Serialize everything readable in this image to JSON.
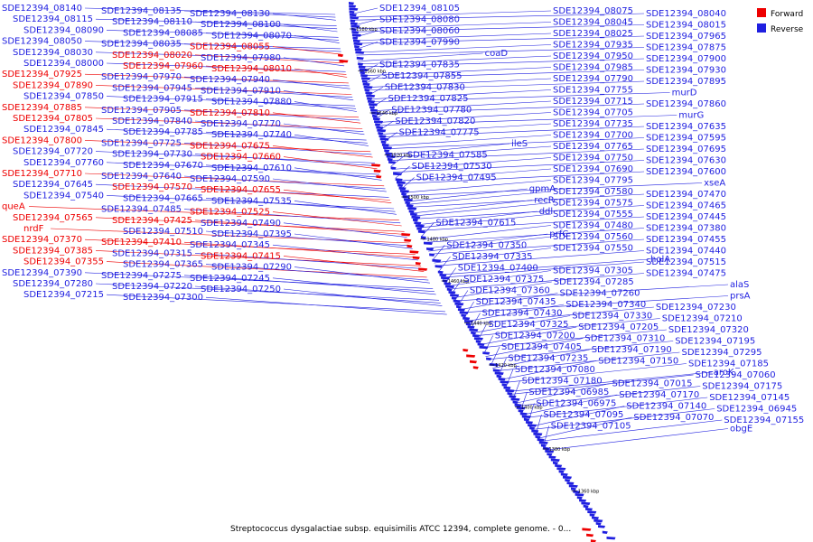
{
  "colors": {
    "forward": "#ee0000",
    "reverse": "#1f1fe0",
    "backbone": "#888888"
  },
  "legend": {
    "forward": "Forward",
    "reverse": "Reverse"
  },
  "caption": "Streptococcus dysgalactiae subsp. equisimilis ATCC 12394, complete genome. - 0...",
  "ticks": [
    "1580 kbp",
    "1560 kbp",
    "1540 kbp",
    "1520 kbp",
    "1500 kbp",
    "1480 kbp",
    "1460 kbp",
    "1440 kbp",
    "1420 kbp",
    "1400 kbp",
    "1380 kbp",
    "1360 kbp"
  ],
  "left_labels": [
    {
      "t": "SDE12394_08140",
      "s": "r"
    },
    {
      "t": "SDE12394_08135",
      "s": "r"
    },
    {
      "t": "SDE12394_08130",
      "s": "r"
    },
    {
      "t": "SDE12394_08115",
      "s": "r"
    },
    {
      "t": "SDE12394_08110",
      "s": "r"
    },
    {
      "t": "SDE12394_08100",
      "s": "r"
    },
    {
      "t": "SDE12394_08090",
      "s": "r"
    },
    {
      "t": "SDE12394_08085",
      "s": "r"
    },
    {
      "t": "SDE12394_08070",
      "s": "r"
    },
    {
      "t": "SDE12394_08050",
      "s": "r"
    },
    {
      "t": "SDE12394_08035",
      "s": "r"
    },
    {
      "t": "SDE12394_08055",
      "s": "f"
    },
    {
      "t": "SDE12394_08030",
      "s": "r"
    },
    {
      "t": "SDE12394_08020",
      "s": "f"
    },
    {
      "t": "SDE12394_07980",
      "s": "r"
    },
    {
      "t": "SDE12394_08000",
      "s": "r"
    },
    {
      "t": "SDE12394_07960",
      "s": "f"
    },
    {
      "t": "SDE12394_08010",
      "s": "f"
    },
    {
      "t": "SDE12394_07925",
      "s": "f"
    },
    {
      "t": "SDE12394_07970",
      "s": "r"
    },
    {
      "t": "SDE12394_07940",
      "s": "r"
    },
    {
      "t": "SDE12394_07890",
      "s": "f"
    },
    {
      "t": "SDE12394_07945",
      "s": "r"
    },
    {
      "t": "SDE12394_07910",
      "s": "r"
    },
    {
      "t": "SDE12394_07850",
      "s": "r"
    },
    {
      "t": "SDE12394_07915",
      "s": "r"
    },
    {
      "t": "SDE12394_07880",
      "s": "r"
    },
    {
      "t": "SDE12394_07885",
      "s": "f"
    },
    {
      "t": "SDE12394_07905",
      "s": "r"
    },
    {
      "t": "SDE12394_07810",
      "s": "f"
    },
    {
      "t": "SDE12394_07805",
      "s": "f"
    },
    {
      "t": "SDE12394_07840",
      "s": "r"
    },
    {
      "t": "SDE12394_07770",
      "s": "r"
    },
    {
      "t": "SDE12394_07845",
      "s": "r"
    },
    {
      "t": "SDE12394_07785",
      "s": "r"
    },
    {
      "t": "SDE12394_07740",
      "s": "r"
    },
    {
      "t": "SDE12394_07800",
      "s": "f"
    },
    {
      "t": "SDE12394_07725",
      "s": "r"
    },
    {
      "t": "SDE12394_07675",
      "s": "f"
    },
    {
      "t": "SDE12394_07720",
      "s": "r"
    },
    {
      "t": "SDE12394_07730",
      "s": "r"
    },
    {
      "t": "SDE12394_07660",
      "s": "f"
    },
    {
      "t": "SDE12394_07760",
      "s": "r"
    },
    {
      "t": "SDE12394_07670",
      "s": "r"
    },
    {
      "t": "SDE12394_07610",
      "s": "r"
    },
    {
      "t": "SDE12394_07710",
      "s": "f"
    },
    {
      "t": "SDE12394_07640",
      "s": "r"
    },
    {
      "t": "SDE12394_07590",
      "s": "r"
    },
    {
      "t": "SDE12394_07645",
      "s": "r"
    },
    {
      "t": "SDE12394_07570",
      "s": "f"
    },
    {
      "t": "SDE12394_07655",
      "s": "f"
    },
    {
      "t": "SDE12394_07540",
      "s": "r"
    },
    {
      "t": "SDE12394_07665",
      "s": "r"
    },
    {
      "t": "SDE12394_07535",
      "s": "r"
    },
    {
      "t": "queA",
      "s": "f"
    },
    {
      "t": "SDE12394_07485",
      "s": "r"
    },
    {
      "t": "SDE12394_07525",
      "s": "f"
    },
    {
      "t": "SDE12394_07565",
      "s": "f"
    },
    {
      "t": "SDE12394_07425",
      "s": "f"
    },
    {
      "t": "SDE12394_07490",
      "s": "r"
    },
    {
      "t": "nrdF",
      "s": "f"
    },
    {
      "t": "SDE12394_07510",
      "s": "r"
    },
    {
      "t": "SDE12394_07395",
      "s": "r"
    },
    {
      "t": "SDE12394_07370",
      "s": "f"
    },
    {
      "t": "SDE12394_07410",
      "s": "f"
    },
    {
      "t": "SDE12394_07345",
      "s": "r"
    },
    {
      "t": "SDE12394_07385",
      "s": "f"
    },
    {
      "t": "SDE12394_07315",
      "s": "r"
    },
    {
      "t": "SDE12394_07415",
      "s": "f"
    },
    {
      "t": "SDE12394_07355",
      "s": "f"
    },
    {
      "t": "SDE12394_07365",
      "s": "r"
    },
    {
      "t": "SDE12394_07290",
      "s": "r"
    },
    {
      "t": "SDE12394_07390",
      "s": "r"
    },
    {
      "t": "SDE12394_07275",
      "s": "r"
    },
    {
      "t": "SDE12394_07245",
      "s": "r"
    },
    {
      "t": "SDE12394_07280",
      "s": "r"
    },
    {
      "t": "SDE12394_07220",
      "s": "r"
    },
    {
      "t": "SDE12394_07250",
      "s": "r"
    },
    {
      "t": "SDE12394_07215",
      "s": "r"
    },
    {
      "t": "SDE12394_07300",
      "s": "r"
    }
  ],
  "right_labels": [
    {
      "t": "SDE12394_08105",
      "s": "r"
    },
    {
      "t": "SDE12394_08075",
      "s": "r"
    },
    {
      "t": "SDE12394_08040",
      "s": "r"
    },
    {
      "t": "SDE12394_08080",
      "s": "r"
    },
    {
      "t": "SDE12394_08045",
      "s": "r"
    },
    {
      "t": "SDE12394_08015",
      "s": "r"
    },
    {
      "t": "SDE12394_08060",
      "s": "r"
    },
    {
      "t": "SDE12394_08025",
      "s": "r"
    },
    {
      "t": "SDE12394_07965",
      "s": "r"
    },
    {
      "t": "SDE12394_07990",
      "s": "r"
    },
    {
      "t": "SDE12394_07935",
      "s": "r"
    },
    {
      "t": "SDE12394_07875",
      "s": "r"
    },
    {
      "t": "coaD",
      "s": "r"
    },
    {
      "t": "SDE12394_07950",
      "s": "r"
    },
    {
      "t": "SDE12394_07900",
      "s": "r"
    },
    {
      "t": "SDE12394_07835",
      "s": "r"
    },
    {
      "t": "SDE12394_07985",
      "s": "r"
    },
    {
      "t": "SDE12394_07930",
      "s": "r"
    },
    {
      "t": "SDE12394_07855",
      "s": "r"
    },
    {
      "t": "SDE12394_07790",
      "s": "r"
    },
    {
      "t": "SDE12394_07895",
      "s": "r"
    },
    {
      "t": "SDE12394_07830",
      "s": "r"
    },
    {
      "t": "SDE12394_07755",
      "s": "r"
    },
    {
      "t": "murD",
      "s": "r"
    },
    {
      "t": "SDE12394_07825",
      "s": "r"
    },
    {
      "t": "SDE12394_07715",
      "s": "r"
    },
    {
      "t": "SDE12394_07860",
      "s": "r"
    },
    {
      "t": "SDE12394_07780",
      "s": "r"
    },
    {
      "t": "SDE12394_07705",
      "s": "r"
    },
    {
      "t": "murG",
      "s": "r"
    },
    {
      "t": "SDE12394_07820",
      "s": "r"
    },
    {
      "t": "SDE12394_07735",
      "s": "r"
    },
    {
      "t": "SDE12394_07635",
      "s": "r"
    },
    {
      "t": "SDE12394_07775",
      "s": "r"
    },
    {
      "t": "SDE12394_07700",
      "s": "r"
    },
    {
      "t": "SDE12394_07595",
      "s": "r"
    },
    {
      "t": "ileS",
      "s": "r"
    },
    {
      "t": "SDE12394_07765",
      "s": "r"
    },
    {
      "t": "SDE12394_07695",
      "s": "r"
    },
    {
      "t": "SDE12394_07585",
      "s": "r"
    },
    {
      "t": "SDE12394_07750",
      "s": "r"
    },
    {
      "t": "SDE12394_07630",
      "s": "r"
    },
    {
      "t": "SDE12394_07530",
      "s": "r"
    },
    {
      "t": "SDE12394_07690",
      "s": "r"
    },
    {
      "t": "SDE12394_07600",
      "s": "r"
    },
    {
      "t": "SDE12394_07495",
      "s": "r"
    },
    {
      "t": "SDE12394_07795",
      "s": "r"
    },
    {
      "t": "xseA",
      "s": "r"
    },
    {
      "t": "gpmA",
      "s": "r"
    },
    {
      "t": "SDE12394_07580",
      "s": "r"
    },
    {
      "t": "SDE12394_07470",
      "s": "r"
    },
    {
      "t": "recR",
      "s": "r"
    },
    {
      "t": "SDE12394_07575",
      "s": "r"
    },
    {
      "t": "SDE12394_07465",
      "s": "r"
    },
    {
      "t": "ddl",
      "s": "r"
    },
    {
      "t": "SDE12394_07555",
      "s": "r"
    },
    {
      "t": "SDE12394_07445",
      "s": "r"
    },
    {
      "t": "SDE12394_07615",
      "s": "r"
    },
    {
      "t": "SDE12394_07480",
      "s": "r"
    },
    {
      "t": "SDE12394_07380",
      "s": "r"
    },
    {
      "t": "prfC",
      "s": "r"
    },
    {
      "t": "SDE12394_07560",
      "s": "r"
    },
    {
      "t": "SDE12394_07455",
      "s": "r"
    },
    {
      "t": "SDE12394_07350",
      "s": "r"
    },
    {
      "t": "SDE12394_07550",
      "s": "r"
    },
    {
      "t": "SDE12394_07440",
      "s": "r"
    },
    {
      "t": "SDE12394_07335",
      "s": "r"
    },
    {
      "t": "holA",
      "s": "r"
    },
    {
      "t": "SDE12394_07515",
      "s": "r"
    },
    {
      "t": "SDE12394_07400",
      "s": "r"
    },
    {
      "t": "SDE12394_07305",
      "s": "r"
    },
    {
      "t": "SDE12394_07475",
      "s": "r"
    },
    {
      "t": "SDE12394_07375",
      "s": "r"
    },
    {
      "t": "SDE12394_07285",
      "s": "r"
    },
    {
      "t": "alaS",
      "s": "r"
    },
    {
      "t": "SDE12394_07360",
      "s": "r"
    },
    {
      "t": "SDE12394_07260",
      "s": "r"
    },
    {
      "t": "prsA",
      "s": "r"
    },
    {
      "t": "SDE12394_07435",
      "s": "r"
    },
    {
      "t": "SDE12394_07340",
      "s": "r"
    },
    {
      "t": "SDE12394_07230",
      "s": "r"
    },
    {
      "t": "SDE12394_07430",
      "s": "r"
    },
    {
      "t": "SDE12394_07330",
      "s": "r"
    },
    {
      "t": "SDE12394_07210",
      "s": "r"
    },
    {
      "t": "SDE12394_07325",
      "s": "r"
    },
    {
      "t": "SDE12394_07205",
      "s": "r"
    },
    {
      "t": "SDE12394_07320",
      "s": "r"
    },
    {
      "t": "SDE12394_07200",
      "s": "r"
    },
    {
      "t": "SDE12394_07310",
      "s": "r"
    },
    {
      "t": "SDE12394_07195",
      "s": "r"
    },
    {
      "t": "SDE12394_07405",
      "s": "r"
    },
    {
      "t": "SDE12394_07190",
      "s": "r"
    },
    {
      "t": "SDE12394_07295",
      "s": "r"
    },
    {
      "t": "SDE12394_07235",
      "s": "r"
    },
    {
      "t": "SDE12394_07150",
      "s": "r"
    },
    {
      "t": "SDE12394_07185",
      "s": "r"
    },
    {
      "t": "SDE12394_07080",
      "s": "r"
    },
    {
      "t": "aroK",
      "s": "r"
    },
    {
      "t": "SDE12394_07060",
      "s": "r"
    },
    {
      "t": "SDE12394_07180",
      "s": "r"
    },
    {
      "t": "SDE12394_07015",
      "s": "r"
    },
    {
      "t": "SDE12394_07175",
      "s": "r"
    },
    {
      "t": "SDE12394_06985",
      "s": "r"
    },
    {
      "t": "SDE12394_07170",
      "s": "r"
    },
    {
      "t": "SDE12394_07145",
      "s": "r"
    },
    {
      "t": "SDE12394_06975",
      "s": "r"
    },
    {
      "t": "SDE12394_07140",
      "s": "r"
    },
    {
      "t": "SDE12394_06945",
      "s": "r"
    },
    {
      "t": "SDE12394_07095",
      "s": "r"
    },
    {
      "t": "SDE12394_07070",
      "s": "r"
    },
    {
      "t": "SDE12394_07155",
      "s": "r"
    },
    {
      "t": "SDE12394_07105",
      "s": "r"
    },
    {
      "t": "obgE",
      "s": "r"
    }
  ]
}
